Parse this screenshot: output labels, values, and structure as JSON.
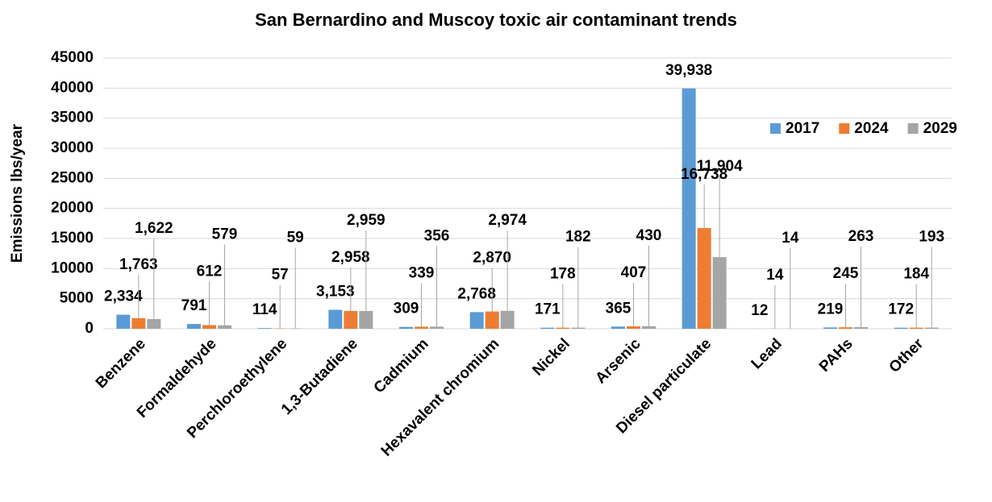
{
  "chart_data": {
    "type": "bar",
    "title": "San Bernardino and Muscoy toxic air contaminant trends",
    "y_label": "Emissions lbs/year",
    "categories": [
      "Benzene",
      "Formaldehyde",
      "Perchloroethylene",
      "1,3-Butadiene",
      "Cadmium",
      "Hexavalent chromium",
      "Nickel",
      "Arsenic",
      "Diesel particulate",
      "Lead",
      "PAHs",
      "Other"
    ],
    "series": [
      {
        "name": "2017",
        "color": "#5b9bd5",
        "values": [
          2334,
          791,
          114,
          3153,
          309,
          2768,
          171,
          365,
          39938,
          12,
          219,
          172
        ],
        "value_labels": [
          "2,334",
          "791",
          "114",
          "3,153",
          "309",
          "2,768",
          "171",
          "365",
          "39,938",
          "12",
          "219",
          "172"
        ]
      },
      {
        "name": "2024",
        "color": "#ed7d31",
        "values": [
          1763,
          612,
          57,
          2958,
          339,
          2870,
          178,
          407,
          16738,
          14,
          245,
          184
        ],
        "value_labels": [
          "1,763",
          "612",
          "57",
          "2,958",
          "339",
          "2,870",
          "178",
          "407",
          "16,738",
          "14",
          "245",
          "184"
        ]
      },
      {
        "name": "2029",
        "color": "#a5a5a5",
        "values": [
          1622,
          579,
          59,
          2959,
          356,
          2974,
          182,
          430,
          11904,
          14,
          263,
          193
        ],
        "value_labels": [
          "1,622",
          "579",
          "59",
          "2,959",
          "356",
          "2,974",
          "182",
          "430",
          "11,904",
          "14",
          "263",
          "193"
        ]
      }
    ],
    "ylim": [
      0,
      45000
    ],
    "yticks": [
      0,
      5000,
      10000,
      15000,
      20000,
      25000,
      30000,
      35000,
      40000,
      45000
    ],
    "grid": true,
    "legend": "top-right"
  }
}
